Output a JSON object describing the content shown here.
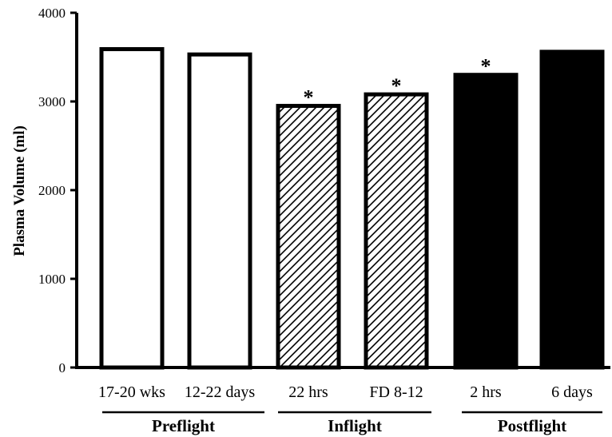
{
  "chart_data": {
    "type": "bar",
    "title": "",
    "xlabel": "",
    "ylabel": "Plasma Volume (ml)",
    "ylim": [
      0,
      4000
    ],
    "yticks": [
      0,
      1000,
      2000,
      3000,
      4000
    ],
    "grid": false,
    "categories": [
      "17-20 wks",
      "12-22 days",
      "22 hrs",
      "FD 8-12",
      "2 hrs",
      "6 days"
    ],
    "values": [
      3590,
      3530,
      2950,
      3080,
      3300,
      3560
    ],
    "significant": [
      false,
      false,
      true,
      true,
      true,
      false
    ],
    "significance_marker": "*",
    "fills": [
      "open",
      "open",
      "hatched",
      "hatched",
      "solid",
      "solid"
    ],
    "groups": [
      {
        "label": "Preflight",
        "categories": [
          0,
          1
        ]
      },
      {
        "label": "Inflight",
        "categories": [
          2,
          3
        ]
      },
      {
        "label": "Postflight",
        "categories": [
          4,
          5
        ]
      }
    ]
  }
}
